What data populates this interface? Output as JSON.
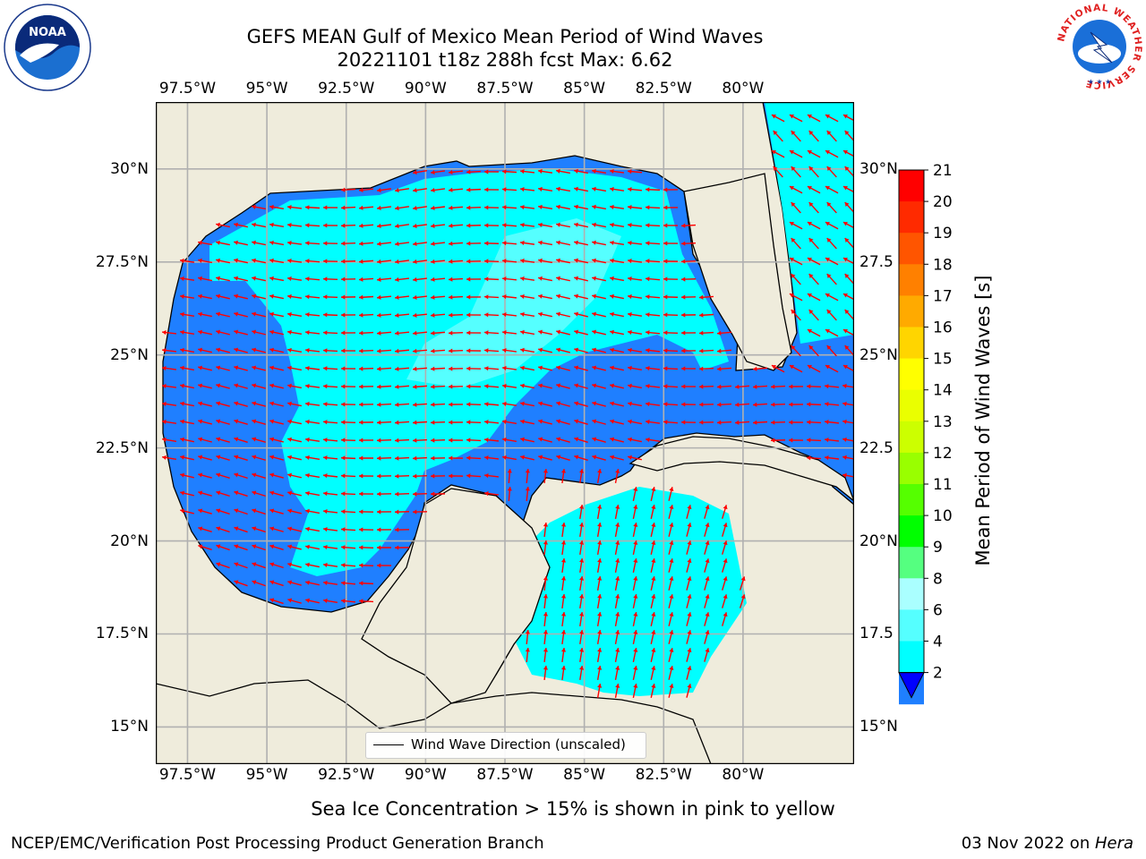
{
  "title": {
    "line1": "GEFS MEAN Gulf of Mexico Mean Period of Wind Waves",
    "line2": "20221101 t18z 288h fcst   Max: 6.62"
  },
  "map": {
    "lon_range": [
      -98.5,
      -76.5
    ],
    "lat_range": [
      14.0,
      31.8
    ],
    "x_ticks": [
      "97.5°W",
      "95°W",
      "92.5°W",
      "90°W",
      "87.5°W",
      "85°W",
      "82.5°W",
      "80°W"
    ],
    "y_ticks_left": [
      "30°N",
      "27.5°N",
      "25°N",
      "22.5°N",
      "20°N",
      "17.5°N",
      "15°N"
    ],
    "y_ticks_right": [
      "30°N",
      "27.5",
      "25°N",
      "22.5",
      "20°N",
      "17.5",
      "15°N"
    ],
    "land_color": "#efecdc",
    "water_colors": {
      "2-4": "#1f7fff",
      "4-6": "#00ffff",
      "6-8": "#55ffff",
      "below-2": "#0000ff"
    },
    "arrow_color": "#ff0000",
    "grid": true
  },
  "legend": {
    "label": "Wind Wave Direction (unscaled)"
  },
  "colorbar": {
    "label": "Mean Period of Wind Waves [s]",
    "levels": [
      "21",
      "20",
      "19",
      "18",
      "17",
      "16",
      "15",
      "14",
      "13",
      "12",
      "11",
      "10",
      "9",
      "8",
      "6",
      "4",
      "2"
    ],
    "colors": [
      "#ff0000",
      "#ff2a00",
      "#ff5500",
      "#ff8000",
      "#ffaa00",
      "#ffd500",
      "#ffff00",
      "#eaff00",
      "#ccff00",
      "#99ff00",
      "#55ff00",
      "#00ff00",
      "#55ff80",
      "#aaffff",
      "#55ffff",
      "#00ffff",
      "#1f7fff"
    ],
    "under_color": "#0000ff"
  },
  "notes": {
    "sea_ice": "Sea Ice Concentration > 15% is shown in pink to yellow",
    "credit": "NCEP/EMC/Verification Post Processing Product Generation Branch",
    "date": "03 Nov 2022 on ",
    "host": "Hera"
  },
  "logos": {
    "left": "NOAA",
    "right_ring": "NATIONAL WEATHER SERVICE"
  }
}
